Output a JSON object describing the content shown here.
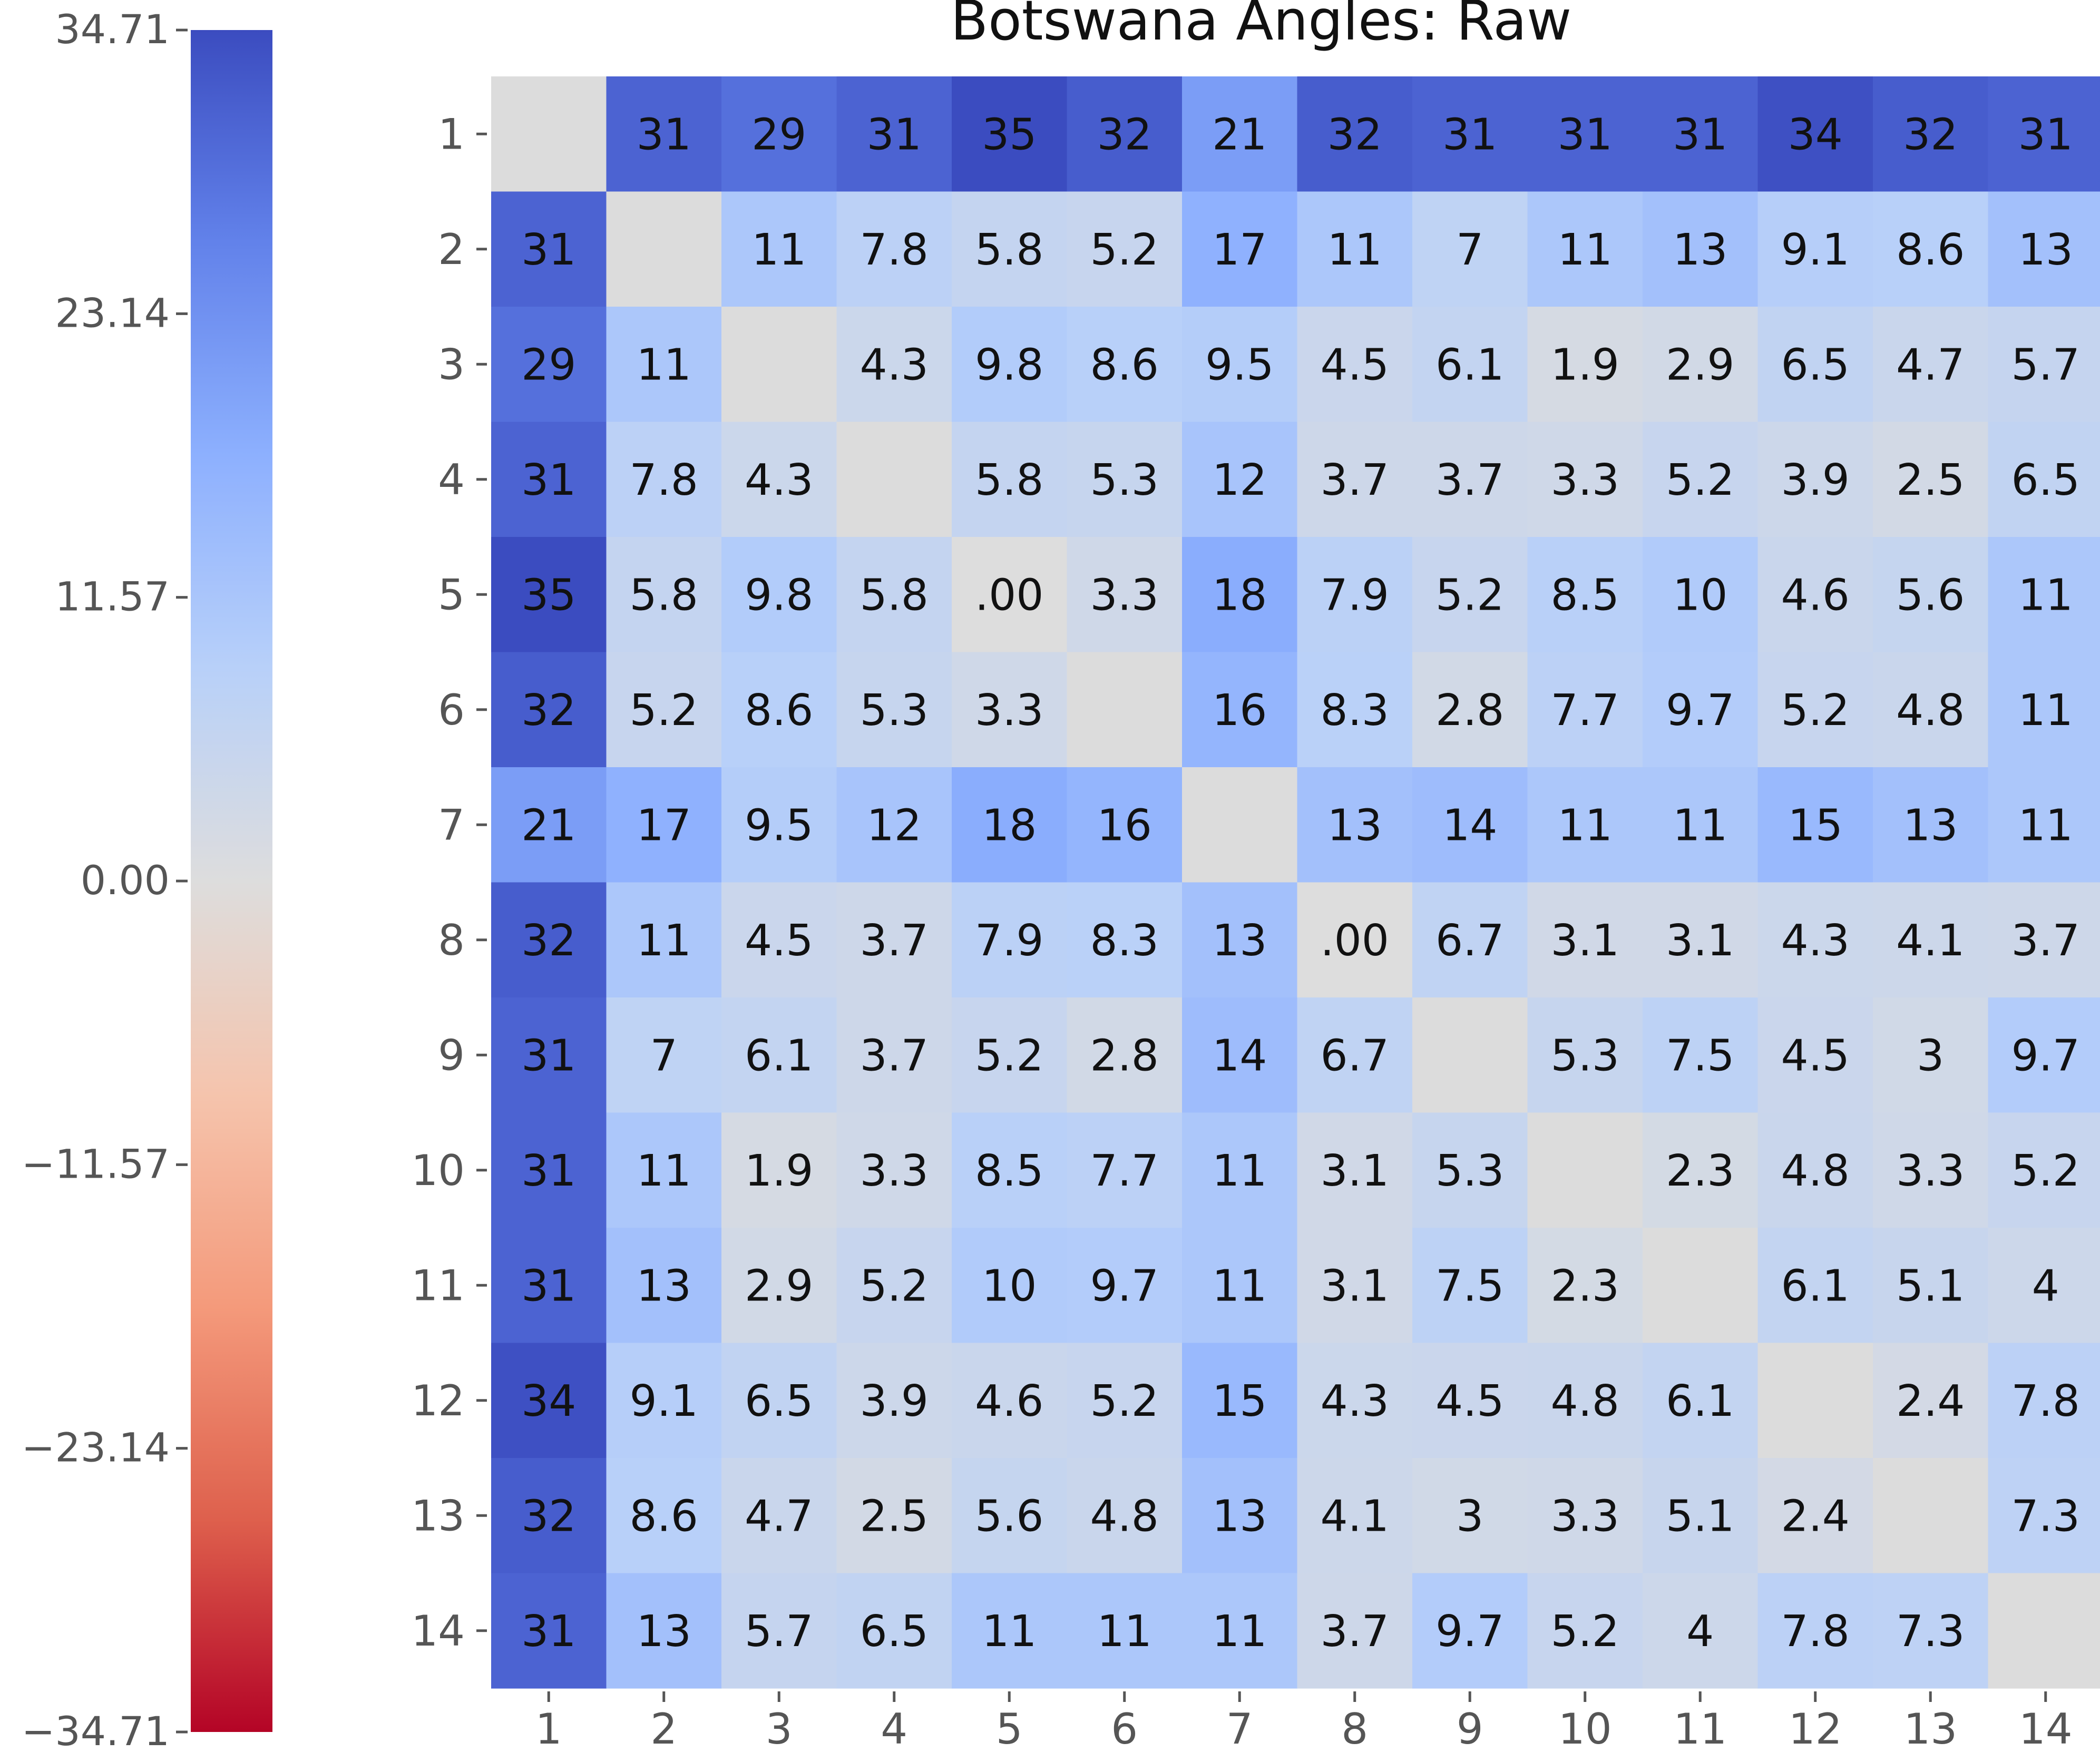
{
  "chart_data": {
    "type": "heatmap",
    "title": "Botswana Angles: Raw",
    "xlabel": "",
    "ylabel": "",
    "row_labels": [
      "1",
      "2",
      "3",
      "4",
      "5",
      "6",
      "7",
      "8",
      "9",
      "10",
      "11",
      "12",
      "13",
      "14"
    ],
    "col_labels": [
      "1",
      "2",
      "3",
      "4",
      "5",
      "6",
      "7",
      "8",
      "9",
      "10",
      "11",
      "12",
      "13",
      "14"
    ],
    "values": [
      [
        null,
        "31",
        "29",
        "31",
        "35",
        "32",
        "21",
        "32",
        "31",
        "31",
        "31",
        "34",
        "32",
        "31"
      ],
      [
        "31",
        null,
        "11",
        "7.8",
        "5.8",
        "5.2",
        "17",
        "11",
        "7",
        "11",
        "13",
        "9.1",
        "8.6",
        "13"
      ],
      [
        "29",
        "11",
        null,
        "4.3",
        "9.8",
        "8.6",
        "9.5",
        "4.5",
        "6.1",
        "1.9",
        "2.9",
        "6.5",
        "4.7",
        "5.7"
      ],
      [
        "31",
        "7.8",
        "4.3",
        null,
        "5.8",
        "5.3",
        "12",
        "3.7",
        "3.7",
        "3.3",
        "5.2",
        "3.9",
        "2.5",
        "6.5"
      ],
      [
        "35",
        "5.8",
        "9.8",
        "5.8",
        ".00",
        "3.3",
        "18",
        "7.9",
        "5.2",
        "8.5",
        "10",
        "4.6",
        "5.6",
        "11"
      ],
      [
        "32",
        "5.2",
        "8.6",
        "5.3",
        "3.3",
        null,
        "16",
        "8.3",
        "2.8",
        "7.7",
        "9.7",
        "5.2",
        "4.8",
        "11"
      ],
      [
        "21",
        "17",
        "9.5",
        "12",
        "18",
        "16",
        null,
        "13",
        "14",
        "11",
        "11",
        "15",
        "13",
        "11"
      ],
      [
        "32",
        "11",
        "4.5",
        "3.7",
        "7.9",
        "8.3",
        "13",
        ".00",
        "6.7",
        "3.1",
        "3.1",
        "4.3",
        "4.1",
        "3.7"
      ],
      [
        "31",
        "7",
        "6.1",
        "3.7",
        "5.2",
        "2.8",
        "14",
        "6.7",
        null,
        "5.3",
        "7.5",
        "4.5",
        "3",
        "9.7"
      ],
      [
        "31",
        "11",
        "1.9",
        "3.3",
        "8.5",
        "7.7",
        "11",
        "3.1",
        "5.3",
        null,
        "2.3",
        "4.8",
        "3.3",
        "5.2"
      ],
      [
        "31",
        "13",
        "2.9",
        "5.2",
        "10",
        "9.7",
        "11",
        "3.1",
        "7.5",
        "2.3",
        null,
        "6.1",
        "5.1",
        "4"
      ],
      [
        "34",
        "9.1",
        "6.5",
        "3.9",
        "4.6",
        "5.2",
        "15",
        "4.3",
        "4.5",
        "4.8",
        "6.1",
        null,
        "2.4",
        "7.8"
      ],
      [
        "32",
        "8.6",
        "4.7",
        "2.5",
        "5.6",
        "4.8",
        "13",
        "4.1",
        "3",
        "3.3",
        "5.1",
        "2.4",
        null,
        "7.3"
      ],
      [
        "31",
        "13",
        "5.7",
        "6.5",
        "11",
        "11",
        "11",
        "3.7",
        "9.7",
        "5.2",
        "4",
        "7.8",
        "7.3",
        null
      ]
    ],
    "colorbar": {
      "min": -34.71,
      "max": 34.71,
      "colormap": "coolwarm_r",
      "tick_labels": [
        "34.71",
        "23.14",
        "11.57",
        "0.00",
        "−11.57",
        "−23.14",
        "−34.71"
      ]
    },
    "missing_color": "#dcdcdc",
    "grid": false,
    "legend": "colorbar-left"
  }
}
